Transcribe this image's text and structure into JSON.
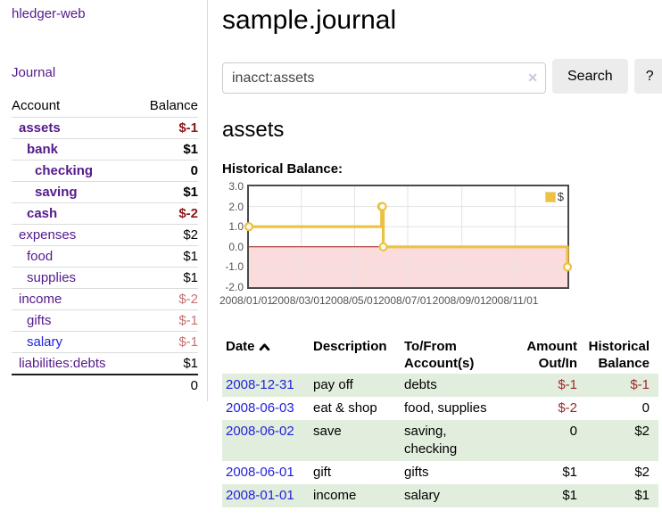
{
  "app": {
    "title": "hledger-web"
  },
  "sidebar": {
    "journal_label": "Journal",
    "table": {
      "col_account": "Account",
      "col_balance": "Balance",
      "rows": [
        {
          "account": "assets",
          "balance": "$-1",
          "depth": 0,
          "strong": true,
          "neg": "strong"
        },
        {
          "account": "bank",
          "balance": "$1",
          "depth": 1,
          "strong": true,
          "neg": "none"
        },
        {
          "account": "checking",
          "balance": "0",
          "depth": 2,
          "strong": true,
          "neg": "none"
        },
        {
          "account": "saving",
          "balance": "$1",
          "depth": 2,
          "strong": true,
          "neg": "none"
        },
        {
          "account": "cash",
          "balance": "$-2",
          "depth": 1,
          "strong": true,
          "neg": "strong"
        },
        {
          "account": "expenses",
          "balance": "$2",
          "depth": 0,
          "strong": false,
          "neg": "none"
        },
        {
          "account": "food",
          "balance": "$1",
          "depth": 1,
          "strong": false,
          "neg": "none"
        },
        {
          "account": "supplies",
          "balance": "$1",
          "depth": 1,
          "strong": false,
          "neg": "none"
        },
        {
          "account": "income",
          "balance": "$-2",
          "depth": 0,
          "strong": false,
          "neg": "pale"
        },
        {
          "account": "gifts",
          "balance": "$-1",
          "depth": 1,
          "strong": false,
          "neg": "pale"
        },
        {
          "account": "salary",
          "balance": "$-1",
          "depth": 1,
          "strong": false,
          "neg": "pale",
          "link": "blue"
        },
        {
          "account": "liabilities:debts",
          "balance": "$1",
          "depth": 0,
          "strong": false,
          "neg": "none"
        }
      ],
      "total": "0"
    }
  },
  "main": {
    "title": "sample.journal",
    "search": {
      "value": "inacct:assets",
      "clear_icon": "✕",
      "button_label": "Search",
      "help_label": "?"
    },
    "account_heading": "assets",
    "chart_label": "Historical Balance:"
  },
  "chart_data": {
    "type": "line",
    "step": true,
    "title": "Historical Balance",
    "legend": [
      "$"
    ],
    "legend_position": "top-right",
    "grid": true,
    "ylim": [
      -2,
      3
    ],
    "yticks": [
      "3.0",
      "2.0",
      "1.0",
      "0.0",
      "-1.0",
      "-2.0"
    ],
    "xlim": [
      "2008-01-01",
      "2008-12-31"
    ],
    "xticks": [
      "2008/01/01",
      "2008/03/01",
      "2008/05/01",
      "2008/07/01",
      "2008/09/01",
      "2008/11/01"
    ],
    "series": [
      {
        "name": "$",
        "color": "#edc240",
        "points": [
          [
            "2008-01-01",
            1
          ],
          [
            "2008-06-01",
            2
          ],
          [
            "2008-06-02",
            2
          ],
          [
            "2008-06-03",
            0
          ],
          [
            "2008-12-31",
            -1
          ]
        ]
      }
    ],
    "negative_fill": "#fbdcdc",
    "zero_line_color": "#a01414"
  },
  "register": {
    "headers": [
      "Date",
      "Description",
      "To/From Account(s)",
      "Amount Out/In",
      "Historical Balance"
    ],
    "rows": [
      {
        "date": "2008-12-31",
        "description": "pay off",
        "accounts": "debts",
        "amount": "$-1",
        "amount_neg": true,
        "balance": "$-1",
        "balance_neg": true
      },
      {
        "date": "2008-06-03",
        "description": "eat & shop",
        "accounts": "food, supplies",
        "amount": "$-2",
        "amount_neg": true,
        "balance": "0",
        "balance_neg": false
      },
      {
        "date": "2008-06-02",
        "description": "save",
        "accounts": "saving, checking",
        "amount": "0",
        "amount_neg": false,
        "balance": "$2",
        "balance_neg": false
      },
      {
        "date": "2008-06-01",
        "description": "gift",
        "accounts": "gifts",
        "amount": "$1",
        "amount_neg": false,
        "balance": "$2",
        "balance_neg": false
      },
      {
        "date": "2008-01-01",
        "description": "income",
        "accounts": "salary",
        "amount": "$1",
        "amount_neg": false,
        "balance": "$1",
        "balance_neg": false
      }
    ]
  },
  "colors": {
    "link_purple": "#551a8b",
    "link_blue": "#2222dd",
    "negative_strong": "#8e1616",
    "negative_pale": "#c57171",
    "negative_table": "#a02929",
    "row_stripe_green": "#e1eedd",
    "chart_line_gold": "#edc240",
    "chart_negative_fill": "#fbdcdc",
    "chart_zero_line": "#a01414",
    "button_bg": "#ececec"
  }
}
